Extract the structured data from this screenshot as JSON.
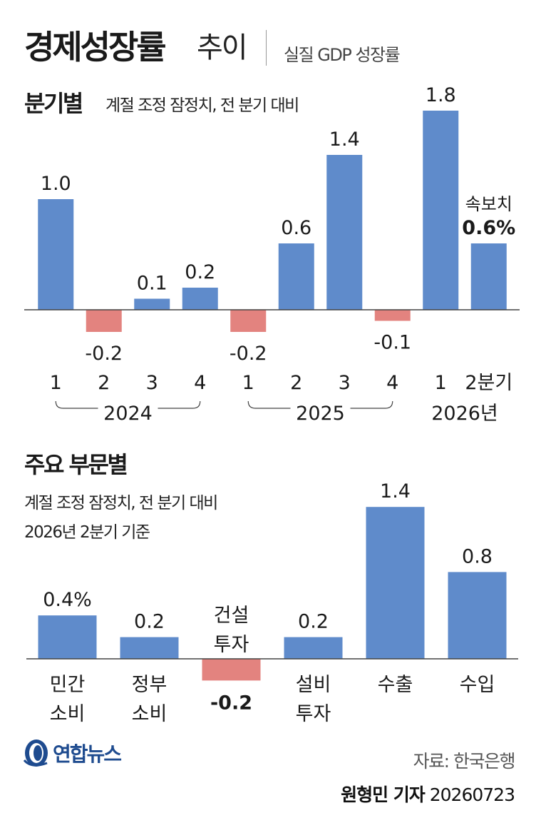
{
  "header": {
    "title_main": "경제성장률",
    "title_sub": "추이",
    "title_note": "실질 GDP 성장률"
  },
  "section1": {
    "title": "분기별",
    "note": "계절 조정 잠정치, 전 분기 대비"
  },
  "section2": {
    "title": "주요 부문별",
    "note_line1": "계절 조정 잠정치, 전 분기 대비",
    "note_line2": "2026년 2분기 기준"
  },
  "footer": {
    "logo": "연합뉴스",
    "source": "자료: 한국은행",
    "reporter": "원형민 기자",
    "date": "20260723"
  },
  "colors": {
    "positive": "#5f8bcb",
    "negative": "#e3837f",
    "axis": "#444444",
    "text": "#1a1a1a",
    "logo": "#1e4b8f"
  },
  "chart_data": [
    {
      "type": "bar",
      "categories": [
        "1",
        "2",
        "3",
        "4",
        "1",
        "2",
        "3",
        "4",
        "1",
        "2분기"
      ],
      "values": [
        1.0,
        -0.2,
        0.1,
        0.2,
        -0.2,
        0.6,
        1.4,
        -0.1,
        1.8,
        0.6
      ],
      "value_labels": [
        "1.0",
        "-0.2",
        "0.1",
        "0.2",
        "-0.2",
        "0.6",
        "1.4",
        "-0.1",
        "1.8",
        "0.6%"
      ],
      "annotations": [
        {
          "category_index": 9,
          "text": "속보치"
        }
      ],
      "year_groups": [
        {
          "label": "2024",
          "start": 0,
          "end": 3
        },
        {
          "label": "2025",
          "start": 4,
          "end": 7
        },
        {
          "label": "2026년",
          "start": 8,
          "end": 9
        }
      ],
      "ylim": [
        -0.4,
        2.0
      ],
      "grid": false
    },
    {
      "type": "bar",
      "categories": [
        [
          "민간",
          "소비"
        ],
        [
          "정부",
          "소비"
        ],
        [
          "건설",
          "투자"
        ],
        [
          "설비",
          "투자"
        ],
        [
          "수출"
        ],
        [
          "수입"
        ]
      ],
      "values": [
        0.4,
        0.2,
        -0.2,
        0.2,
        1.4,
        0.8
      ],
      "value_labels": [
        "0.4%",
        "0.2",
        "-0.2",
        "0.2",
        "1.4",
        "0.8"
      ],
      "ylim": [
        -0.3,
        1.6
      ],
      "grid": false
    }
  ]
}
